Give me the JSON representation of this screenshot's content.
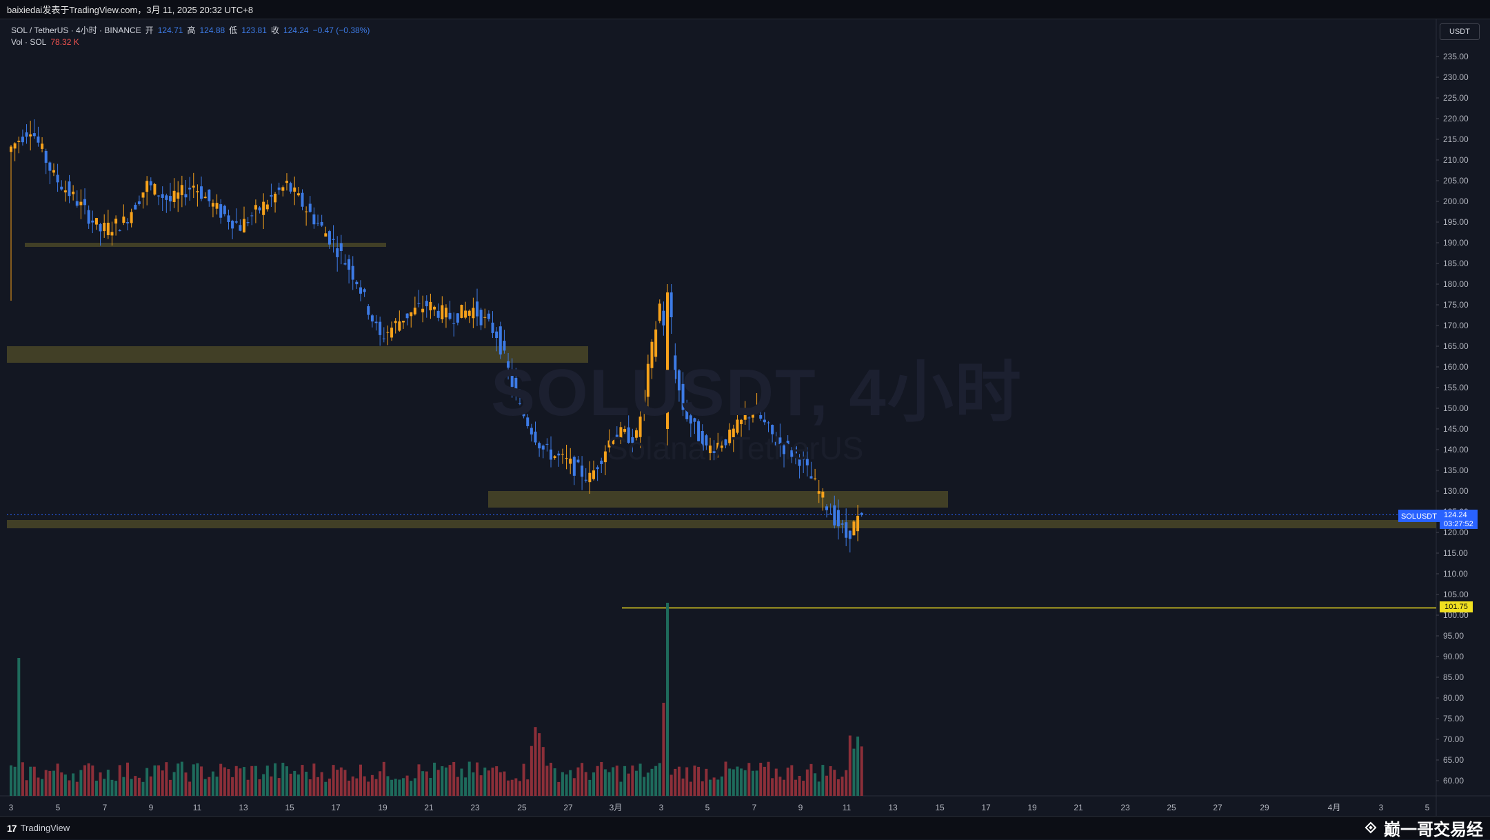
{
  "header": {
    "publish_line": "baixiedai发表于TradingView.com，3月 11, 2025 20:32 UTC+8"
  },
  "legend": {
    "symbol_line": "SOL / TetherUS · 4小时 · BINANCE",
    "open_label": "开",
    "open_value": "124.71",
    "high_label": "高",
    "high_value": "124.88",
    "low_label": "低",
    "low_value": "123.81",
    "close_label": "收",
    "close_value": "124.24",
    "change_value": "−0.47 (−0.38%)",
    "vol_label": "Vol · SOL",
    "vol_value": "78.32 K"
  },
  "watermark": {
    "title": "SOLUSDT, 4小时",
    "subtitle": "Solana / TetherUS"
  },
  "price_axis": {
    "currency": "USDT",
    "ticks": [
      "235.00",
      "230.00",
      "225.00",
      "220.00",
      "215.00",
      "210.00",
      "205.00",
      "200.00",
      "195.00",
      "190.00",
      "185.00",
      "180.00",
      "175.00",
      "170.00",
      "165.00",
      "160.00",
      "155.00",
      "150.00",
      "145.00",
      "140.00",
      "135.00",
      "130.00",
      "125.00",
      "120.00",
      "115.00",
      "110.00",
      "105.00",
      "100.00",
      "95.00",
      "90.00",
      "85.00",
      "80.00",
      "75.00",
      "70.00",
      "65.00",
      "60.00"
    ]
  },
  "current_price": {
    "symbol": "SOLUSDT",
    "price": "124.24",
    "countdown": "03:27:52"
  },
  "level_line": {
    "price": "101.75"
  },
  "time_axis": {
    "ticks": [
      "3",
      "5",
      "7",
      "9",
      "11",
      "13",
      "15",
      "17",
      "19",
      "21",
      "23",
      "25",
      "27",
      "3月",
      "3",
      "5",
      "7",
      "9",
      "11",
      "13",
      "15",
      "17",
      "19",
      "21",
      "23",
      "25",
      "27",
      "29",
      "4月",
      "3",
      "5"
    ]
  },
  "footer": {
    "tradingview_label": "TradingView",
    "brand_text": "巅一哥交易经"
  },
  "colors": {
    "background": "#131722",
    "bull": "#f7a21b",
    "bear": "#3d7be6",
    "zone": "#4a4627",
    "level": "#f0e020",
    "vol_up": "#1e6b5c",
    "vol_down": "#8c2f39"
  },
  "chart_data": {
    "type": "candlestick",
    "symbol": "SOLUSDT",
    "interval": "4小时",
    "ylim": [
      57,
      240
    ],
    "zones": [
      {
        "from": 189,
        "to": 190
      },
      {
        "from": 161,
        "to": 165
      },
      {
        "from": 126,
        "to": 130
      },
      {
        "from": 121,
        "to": 123
      }
    ],
    "level": 101.75,
    "anchors": [
      {
        "x": "Feb 3",
        "price": 212
      },
      {
        "x": "Feb 4",
        "price": 218
      },
      {
        "x": "Feb 5",
        "price": 206
      },
      {
        "x": "Feb 6",
        "price": 200
      },
      {
        "x": "Feb 7",
        "price": 193
      },
      {
        "x": "Feb 8",
        "price": 195
      },
      {
        "x": "Feb 9",
        "price": 204
      },
      {
        "x": "Feb 10",
        "price": 200
      },
      {
        "x": "Feb 11",
        "price": 204
      },
      {
        "x": "Feb 12",
        "price": 198
      },
      {
        "x": "Feb 13",
        "price": 194
      },
      {
        "x": "Feb 14",
        "price": 199
      },
      {
        "x": "Feb 15",
        "price": 204
      },
      {
        "x": "Feb 16",
        "price": 197
      },
      {
        "x": "Feb 17",
        "price": 190
      },
      {
        "x": "Feb 18",
        "price": 181
      },
      {
        "x": "Feb 19",
        "price": 167
      },
      {
        "x": "Feb 20",
        "price": 172
      },
      {
        "x": "Feb 21",
        "price": 175
      },
      {
        "x": "Feb 22",
        "price": 172
      },
      {
        "x": "Feb 23",
        "price": 174
      },
      {
        "x": "Feb 24",
        "price": 168
      },
      {
        "x": "Feb 25",
        "price": 150
      },
      {
        "x": "Feb 26",
        "price": 140
      },
      {
        "x": "Feb 27",
        "price": 137
      },
      {
        "x": "Feb 28",
        "price": 133
      },
      {
        "x": "Mar 1",
        "price": 144
      },
      {
        "x": "Mar 2",
        "price": 143
      },
      {
        "x": "Mar 3",
        "price": 175
      },
      {
        "x": "Mar 4",
        "price": 150
      },
      {
        "x": "Mar 5",
        "price": 140
      },
      {
        "x": "Mar 6",
        "price": 143
      },
      {
        "x": "Mar 7",
        "price": 150
      },
      {
        "x": "Mar 8",
        "price": 142
      },
      {
        "x": "Mar 9",
        "price": 138
      },
      {
        "x": "Mar 10",
        "price": 128
      },
      {
        "x": "Mar 11",
        "price": 119
      },
      {
        "x": "Mar 11 20:00",
        "price": 124.24
      }
    ]
  }
}
